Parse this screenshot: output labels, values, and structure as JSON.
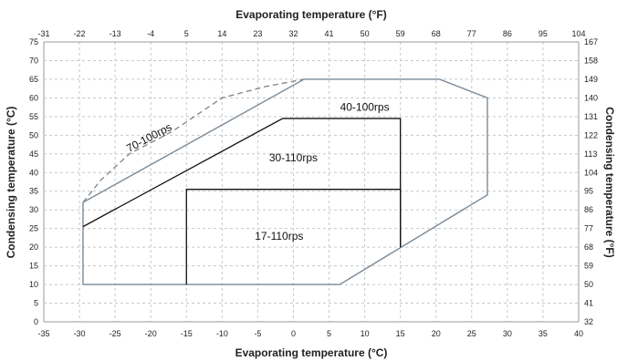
{
  "chart_data": {
    "type": "line",
    "colors": {
      "envelope": "#7a8a99",
      "inner": "#111111",
      "dashed": "#8a8a8a",
      "grid": "#c8c8c8"
    },
    "grid": true,
    "x_bottom": {
      "label": "Evaporating temperature (°C)",
      "range": [
        -35,
        40
      ],
      "ticks": [
        -35,
        -30,
        -25,
        -20,
        -15,
        -10,
        -5,
        0,
        5,
        10,
        15,
        20,
        25,
        30,
        35,
        40
      ]
    },
    "x_top": {
      "label": "Evaporating temperature (°F)",
      "range": [
        -31,
        104
      ],
      "ticks": [
        -31,
        -22,
        -13,
        -4,
        5,
        14,
        23,
        32,
        41,
        50,
        59,
        68,
        77,
        86,
        95,
        104
      ]
    },
    "y_left": {
      "label": "Condensing temperature (°C)",
      "range": [
        0,
        75
      ],
      "ticks": [
        0,
        5,
        10,
        15,
        20,
        25,
        30,
        35,
        40,
        45,
        50,
        55,
        60,
        65,
        70,
        75
      ]
    },
    "y_right": {
      "label": "Condensing temperature (°F)",
      "range": [
        32,
        167
      ],
      "ticks": [
        32,
        41,
        50,
        59,
        68,
        77,
        86,
        95,
        104,
        113,
        122,
        131,
        140,
        149,
        158,
        167
      ]
    },
    "series": [
      {
        "name": "40-100rps",
        "style": "envelope",
        "points": [
          [
            -29.5,
            10
          ],
          [
            6.5,
            10
          ],
          [
            27.2,
            34
          ],
          [
            27.2,
            60
          ],
          [
            20.5,
            65
          ],
          [
            1.5,
            65
          ],
          [
            -29.5,
            32
          ],
          [
            -29.5,
            10
          ]
        ]
      },
      {
        "name": "30-110rps",
        "style": "inner",
        "points": [
          [
            -29.5,
            25.5
          ],
          [
            -1.5,
            54.5
          ],
          [
            15,
            54.5
          ],
          [
            15,
            20
          ]
        ]
      },
      {
        "name": "17-110rps",
        "style": "inner",
        "points": [
          [
            -15,
            10
          ],
          [
            -15,
            35.5
          ],
          [
            15,
            35.5
          ],
          [
            15,
            20
          ]
        ]
      },
      {
        "name": "70-100rps",
        "style": "dashed",
        "points": [
          [
            -29.5,
            32
          ],
          [
            -27,
            38
          ],
          [
            -23,
            45
          ],
          [
            -17,
            51
          ],
          [
            -10,
            60
          ],
          [
            -4,
            63
          ],
          [
            1.5,
            65
          ]
        ]
      }
    ],
    "labels": [
      {
        "text": "40-100rps",
        "x": 10,
        "y": 56.5,
        "rotate": 0
      },
      {
        "text": "30-110rps",
        "x": 0,
        "y": 43,
        "rotate": 0
      },
      {
        "text": "17-110rps",
        "x": -2,
        "y": 22,
        "rotate": 0
      },
      {
        "text": "70-100rps",
        "x": -20,
        "y": 48.5,
        "rotate": -28
      }
    ]
  }
}
